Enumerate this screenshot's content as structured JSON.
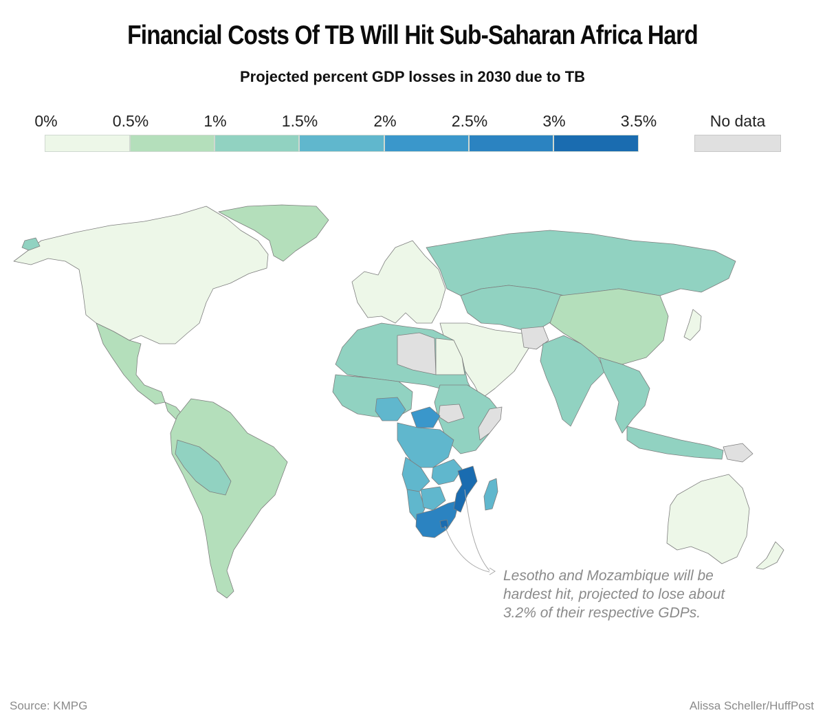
{
  "title": "Financial Costs Of TB Will Hit Sub-Saharan Africa Hard",
  "subtitle": "Projected percent GDP losses in 2030 due to TB",
  "legend": {
    "ticks": [
      "0%",
      "0.5%",
      "1%",
      "1.5%",
      "2%",
      "2.5%",
      "3%",
      "3.5%"
    ],
    "bins": [
      {
        "range": "0–0.5%",
        "color": "#edf7e8"
      },
      {
        "range": "0.5–1%",
        "color": "#b4dfbb"
      },
      {
        "range": "1–1.5%",
        "color": "#91d2c1"
      },
      {
        "range": "1.5–2%",
        "color": "#60b7cd"
      },
      {
        "range": "2–2.5%",
        "color": "#3a97cb"
      },
      {
        "range": "2.5–3%",
        "color": "#2b83c1"
      },
      {
        "range": "3–3.5%",
        "color": "#1a6cb0"
      }
    ],
    "no_data_label": "No data",
    "no_data_color": "#e0e0e0"
  },
  "map_regions": [
    {
      "name": "North America",
      "band": "0-0.5%",
      "color": "#edf7e8"
    },
    {
      "name": "Greenland",
      "band": "0.5-1%",
      "color": "#b4dfbb"
    },
    {
      "name": "Mexico",
      "band": "0.5-1%",
      "color": "#b4dfbb"
    },
    {
      "name": "Central America",
      "band": "0.5-1%",
      "color": "#b4dfbb"
    },
    {
      "name": "South America",
      "band": "0.5-1%",
      "color": "#b4dfbb"
    },
    {
      "name": "Peru-Bolivia",
      "band": "1-1.5%",
      "color": "#91d2c1"
    },
    {
      "name": "Europe",
      "band": "0-0.5%",
      "color": "#edf7e8"
    },
    {
      "name": "Russia",
      "band": "1-1.5%",
      "color": "#91d2c1"
    },
    {
      "name": "Central Asia",
      "band": "1-1.5%",
      "color": "#91d2c1"
    },
    {
      "name": "China",
      "band": "0.5-1%",
      "color": "#b4dfbb"
    },
    {
      "name": "Middle East",
      "band": "0-0.5%",
      "color": "#edf7e8"
    },
    {
      "name": "India",
      "band": "1-1.5%",
      "color": "#91d2c1"
    },
    {
      "name": "Southeast Asia",
      "band": "1-1.5%",
      "color": "#91d2c1"
    },
    {
      "name": "Indonesia",
      "band": "1-1.5%",
      "color": "#91d2c1"
    },
    {
      "name": "North Africa",
      "band": "1-1.5%",
      "color": "#91d2c1"
    },
    {
      "name": "Libya",
      "band": "No data",
      "color": "#e0e0e0"
    },
    {
      "name": "Egypt",
      "band": "0-0.5%",
      "color": "#edf7e8"
    },
    {
      "name": "West Africa",
      "band": "1-1.5%",
      "color": "#91d2c1"
    },
    {
      "name": "Nigeria",
      "band": "1.5-2%",
      "color": "#60b7cd"
    },
    {
      "name": "Central African Republic",
      "band": "2-2.5%",
      "color": "#3a97cb"
    },
    {
      "name": "DR Congo",
      "band": "1.5-2%",
      "color": "#60b7cd"
    },
    {
      "name": "East Africa",
      "band": "1-1.5%",
      "color": "#91d2c1"
    },
    {
      "name": "South Sudan",
      "band": "No data",
      "color": "#e0e0e0"
    },
    {
      "name": "Somalia",
      "band": "No data",
      "color": "#e0e0e0"
    },
    {
      "name": "Angola",
      "band": "1.5-2%",
      "color": "#60b7cd"
    },
    {
      "name": "Zambia-Malawi",
      "band": "1.5-2%",
      "color": "#60b7cd"
    },
    {
      "name": "Namibia",
      "band": "1.5-2%",
      "color": "#60b7cd"
    },
    {
      "name": "Botswana",
      "band": "1.5-2%",
      "color": "#60b7cd"
    },
    {
      "name": "South Africa",
      "band": "2.5-3%",
      "color": "#2b83c1"
    },
    {
      "name": "Lesotho",
      "band": "3-3.5%",
      "color": "#1a6cb0"
    },
    {
      "name": "Mozambique",
      "band": "3-3.5%",
      "color": "#1a6cb0"
    },
    {
      "name": "Madagascar",
      "band": "1.5-2%",
      "color": "#60b7cd"
    },
    {
      "name": "Afghanistan",
      "band": "No data",
      "color": "#e0e0e0"
    },
    {
      "name": "Papua New Guinea",
      "band": "No data",
      "color": "#e0e0e0"
    },
    {
      "name": "Australia",
      "band": "0-0.5%",
      "color": "#edf7e8"
    },
    {
      "name": "New Zealand",
      "band": "0-0.5%",
      "color": "#edf7e8"
    },
    {
      "name": "Japan",
      "band": "0-0.5%",
      "color": "#edf7e8"
    },
    {
      "name": "Iceland",
      "band": "1-1.5%",
      "color": "#91d2c1"
    }
  ],
  "annotation": "Lesotho and Mozambique will be hardest hit, projected to lose about 3.2% of their respective GDPs.",
  "source": "Source: KMPG",
  "credit": "Alissa Scheller/HuffPost"
}
